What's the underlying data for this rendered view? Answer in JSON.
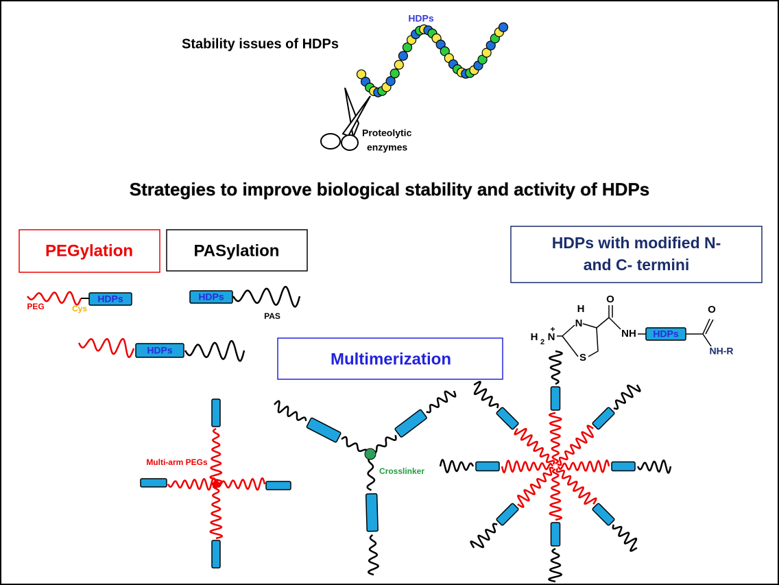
{
  "header": {
    "title": "Stability issues of HDPs",
    "peptide_label": "HDPs",
    "enzyme_label": [
      "Proteolytic",
      "enzymes"
    ]
  },
  "strategies_title": "Strategies to improve biological stability and activity of HDPs",
  "strategies": {
    "pegylation": "PEGylation",
    "pasylation": "PASylation",
    "terminal_modification": [
      "HDPs with modified N-",
      "and C- termini"
    ],
    "multimerization": "Multimerization"
  },
  "labels": {
    "hdps": "HDPs",
    "peg": "PEG",
    "cys": "Cys",
    "pas": "PAS",
    "multi_arm_pegs": "Multi-arm PEGs",
    "crosslinker": "Crosslinker"
  },
  "chemistry": {
    "h": "H",
    "n": "N",
    "amine_h": "H",
    "subscript": "2",
    "amine_n": "N",
    "charge": "+",
    "s": "S",
    "o1": "O",
    "nh": "NH",
    "o2": "O",
    "amide": "NH-R"
  }
}
